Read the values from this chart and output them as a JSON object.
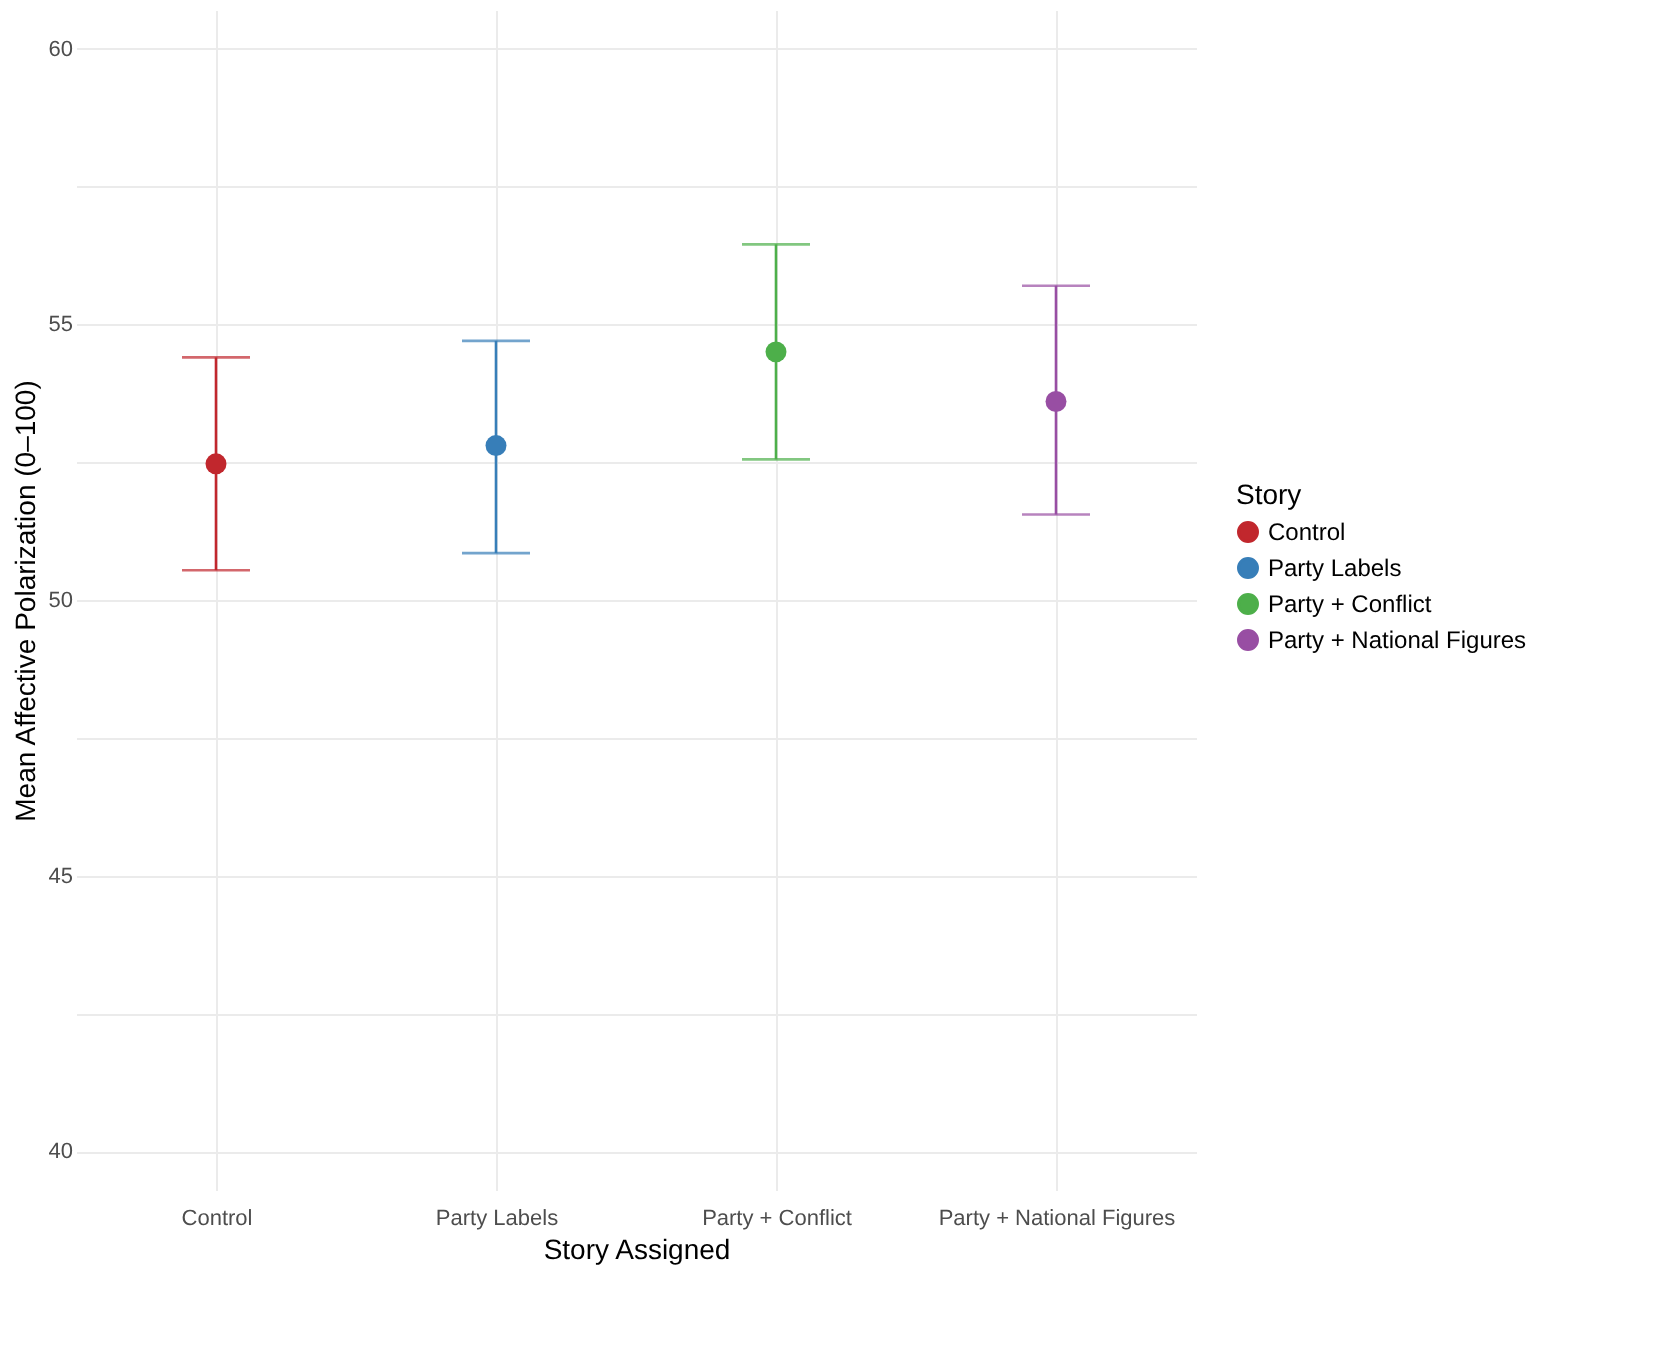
{
  "chart_data": {
    "type": "scatter",
    "xlabel": "Story Assigned",
    "ylabel": "Mean Affective Polarization (0–100)",
    "legend_title": "Story",
    "categories": [
      "Control",
      "Party Labels",
      "Party + Conflict",
      "Party + National Figures"
    ],
    "series": [
      {
        "name": "Control",
        "color": "#c1272d",
        "values": [
          52.47,
          null,
          null,
          null
        ],
        "errors": [
          [
            50.54,
            54.4
          ],
          null,
          null,
          null
        ]
      },
      {
        "name": "Party Labels",
        "color": "#377eb8",
        "values": [
          null,
          52.8,
          null,
          null
        ],
        "errors": [
          null,
          [
            50.85,
            54.7
          ],
          null,
          null
        ]
      },
      {
        "name": "Party + Conflict",
        "color": "#4daf4a",
        "values": [
          null,
          null,
          54.5,
          null
        ],
        "errors": [
          null,
          null,
          [
            52.55,
            56.45
          ],
          null
        ]
      },
      {
        "name": "Party + National Figures",
        "color": "#984ea3",
        "values": [
          null,
          null,
          null,
          53.6
        ],
        "errors": [
          null,
          null,
          null,
          [
            51.55,
            55.7
          ]
        ]
      }
    ],
    "ylim": [
      39.3,
      60.7
    ],
    "yticks": [
      40,
      {
        "value": 42.5,
        "label": null
      },
      45,
      {
        "value": 47.5,
        "label": null
      },
      50,
      {
        "value": 52.5,
        "label": null
      },
      55,
      {
        "value": 57.5,
        "label": null
      },
      60
    ],
    "grid": true,
    "legend": "right",
    "marker": "circle"
  }
}
